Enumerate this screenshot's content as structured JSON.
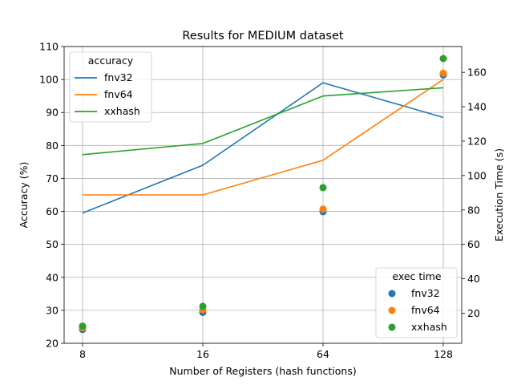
{
  "chart_data": {
    "type": "line",
    "title": "Results for MEDIUM dataset",
    "xlabel": "Number of Registers (hash functions)",
    "ylabel": "Accuracy (%)",
    "y2label": "Execution Time (s)",
    "categories": [
      "8",
      "16",
      "64",
      "128"
    ],
    "ylim": [
      20,
      110
    ],
    "yticks": [
      20,
      30,
      40,
      50,
      60,
      70,
      80,
      90,
      100,
      110
    ],
    "y2lim": [
      2.5,
      175
    ],
    "y2ticks": [
      20,
      40,
      60,
      80,
      100,
      120,
      140,
      160
    ],
    "grid": true,
    "colors": {
      "fnv32": "#1f77b4",
      "fnv64": "#ff7f0e",
      "xxhash": "#2ca02c"
    },
    "accuracy_legend": {
      "title": "accuracy",
      "placement": "upper-left",
      "entries": [
        "fnv32",
        "fnv64",
        "xxhash"
      ]
    },
    "time_legend": {
      "title": "exec time",
      "placement": "lower-right",
      "entries": [
        "fnv32",
        "fnv64",
        "xxhash"
      ]
    },
    "accuracy_series": [
      {
        "name": "fnv32",
        "values": [
          59.5,
          74.0,
          99.0,
          88.5
        ]
      },
      {
        "name": "fnv64",
        "values": [
          65.0,
          65.0,
          75.5,
          100.0
        ]
      },
      {
        "name": "xxhash",
        "values": [
          77.2,
          80.6,
          95.0,
          97.5
        ]
      }
    ],
    "exec_time_series": [
      {
        "name": "fnv32",
        "values": [
          10.5,
          20.5,
          79.0,
          158.5
        ]
      },
      {
        "name": "fnv64",
        "values": [
          11.5,
          22.0,
          80.5,
          159.5
        ]
      },
      {
        "name": "xxhash",
        "values": [
          12.5,
          24.0,
          93.0,
          168.0
        ]
      }
    ]
  }
}
